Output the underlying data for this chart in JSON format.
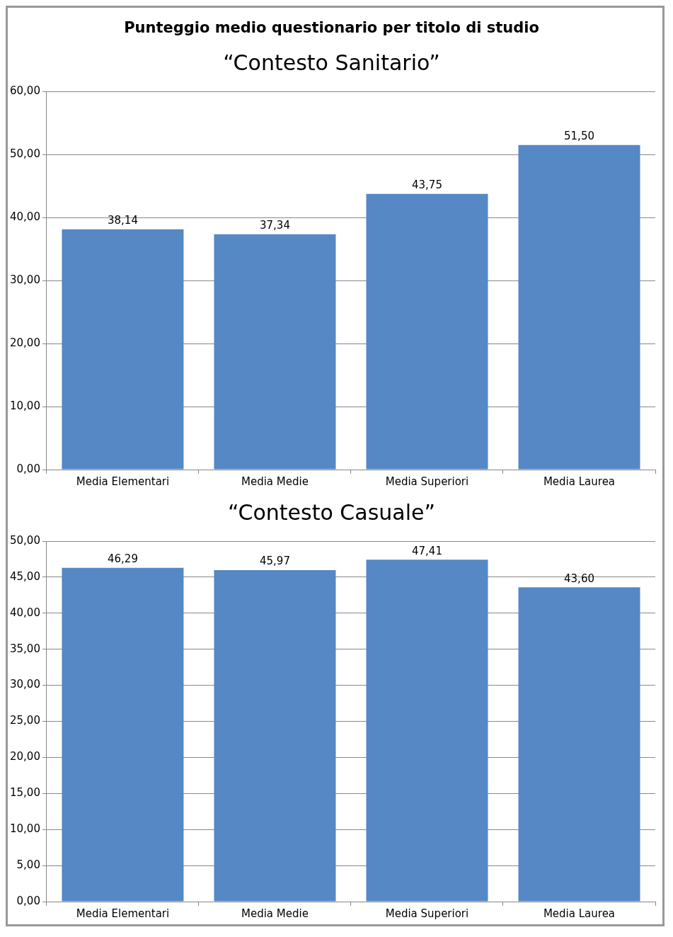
{
  "chart_data": [
    {
      "type": "bar",
      "title": "Punteggio medio questionario per titolo di studio",
      "subtitle": "“Contesto Sanitario”",
      "categories": [
        "Media Elementari",
        "Media Medie",
        "Media Superiori",
        "Media Laurea"
      ],
      "values": [
        38.14,
        37.34,
        43.75,
        51.5
      ],
      "value_labels": [
        "38,14",
        "37,34",
        "43,75",
        "51,50"
      ],
      "color": "#5588c4",
      "ylim": [
        0,
        60
      ],
      "yticks": [
        {
          "value": 0,
          "label": "0,00"
        },
        {
          "value": 10,
          "label": "10,00"
        },
        {
          "value": 20,
          "label": "20,00"
        },
        {
          "value": 30,
          "label": "30,00"
        },
        {
          "value": 40,
          "label": "40,00"
        },
        {
          "value": 50,
          "label": "50,00"
        },
        {
          "value": 60,
          "label": "60,00"
        }
      ],
      "grid": "y"
    },
    {
      "type": "bar",
      "title": "“Contesto Casuale”",
      "categories": [
        "Media Elementari",
        "Media Medie",
        "Media Superiori",
        "Media Laurea"
      ],
      "values": [
        46.29,
        45.97,
        47.41,
        43.6
      ],
      "value_labels": [
        "46,29",
        "45,97",
        "47,41",
        "43,60"
      ],
      "color": "#5588c4",
      "ylim": [
        0,
        50
      ],
      "yticks": [
        {
          "value": 0,
          "label": "0,00"
        },
        {
          "value": 5,
          "label": "5,00"
        },
        {
          "value": 10,
          "label": "10,00"
        },
        {
          "value": 15,
          "label": "15,00"
        },
        {
          "value": 20,
          "label": "20,00"
        },
        {
          "value": 25,
          "label": "25,00"
        },
        {
          "value": 30,
          "label": "30,00"
        },
        {
          "value": 35,
          "label": "35,00"
        },
        {
          "value": 40,
          "label": "40,00"
        },
        {
          "value": 45,
          "label": "45,00"
        },
        {
          "value": 50,
          "label": "50,00"
        }
      ],
      "grid": "y"
    }
  ]
}
